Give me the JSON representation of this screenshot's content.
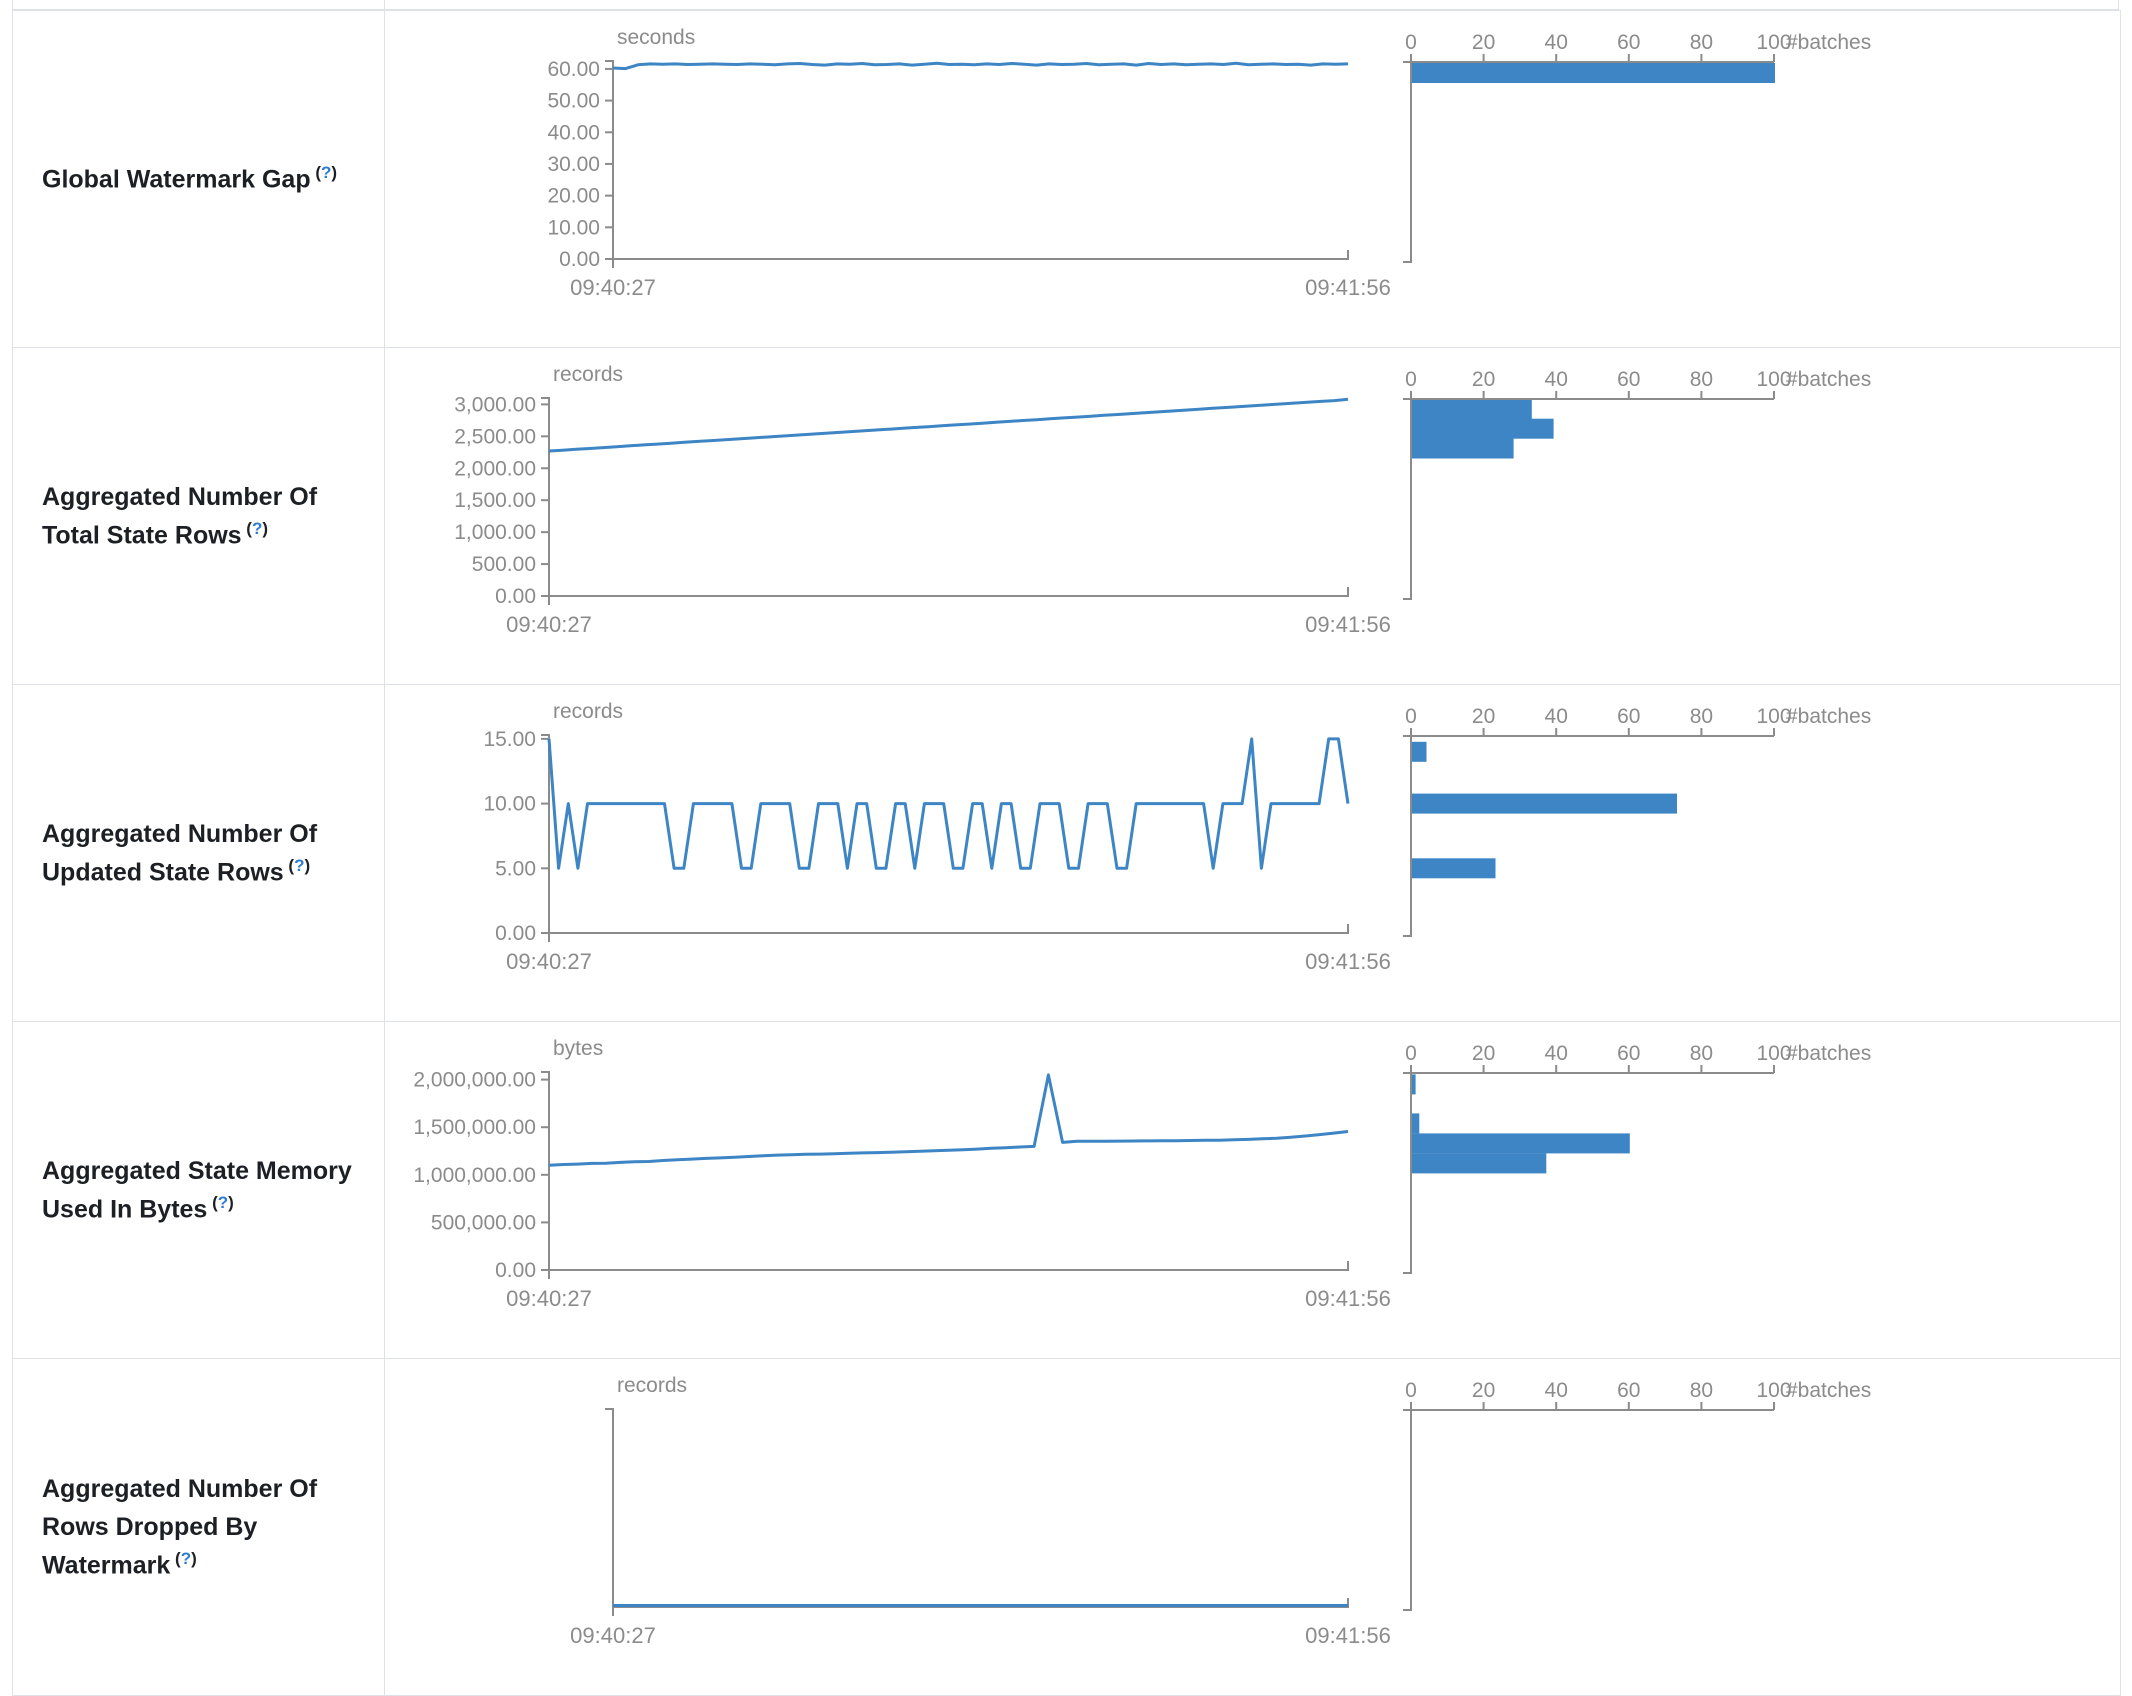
{
  "colors": {
    "accent_blue": "#3d85c4",
    "axis_gray": "#8b8b8b",
    "label_dark": "#1c2025",
    "help_blue": "#2e7cd1",
    "border_gray": "#dee2e6"
  },
  "histogram_axis": {
    "label": "#batches",
    "ticks": [
      0,
      20,
      40,
      60,
      80,
      100
    ],
    "max": 100
  },
  "x_axis": {
    "start_label": "09:40:27",
    "end_label": "09:41:56"
  },
  "rows": [
    {
      "label": "Global Watermark Gap",
      "help": "?"
    },
    {
      "label": "Aggregated Number Of Total State Rows",
      "help": "?"
    },
    {
      "label": "Aggregated Number Of Updated State Rows",
      "help": "?"
    },
    {
      "label": "Aggregated State Memory Used In Bytes",
      "help": "?"
    },
    {
      "label": "Aggregated Number Of Rows Dropped By Watermark",
      "help": "?"
    }
  ],
  "chart_data": [
    {
      "type": "line",
      "title": "Global Watermark Gap",
      "ylabel": "seconds",
      "x_start": "09:40:27",
      "x_end": "09:41:56",
      "ylim": [
        0,
        62.5
      ],
      "yticks": [
        {
          "v": 0,
          "label": "0.00"
        },
        {
          "v": 10,
          "label": "10.00"
        },
        {
          "v": 20,
          "label": "20.00"
        },
        {
          "v": 30,
          "label": "30.00"
        },
        {
          "v": 40,
          "label": "40.00"
        },
        {
          "v": 50,
          "label": "50.00"
        },
        {
          "v": 60,
          "label": "60.00"
        }
      ],
      "values": [
        60.3,
        60.1,
        61.3,
        61.6,
        61.5,
        61.6,
        61.4,
        61.5,
        61.6,
        61.5,
        61.4,
        61.6,
        61.5,
        61.3,
        61.6,
        61.7,
        61.4,
        61.2,
        61.6,
        61.5,
        61.7,
        61.3,
        61.4,
        61.6,
        61.2,
        61.5,
        61.8,
        61.4,
        61.5,
        61.3,
        61.6,
        61.4,
        61.7,
        61.5,
        61.2,
        61.6,
        61.4,
        61.5,
        61.7,
        61.3,
        61.5,
        61.6,
        61.2,
        61.7,
        61.4,
        61.6,
        61.3,
        61.5,
        61.6,
        61.4,
        61.8,
        61.3,
        61.5,
        61.6,
        61.4,
        61.5,
        61.2,
        61.6,
        61.5,
        61.6
      ],
      "histogram": {
        "xlabel": "#batches",
        "total": 100,
        "bins": [
          {
            "center": 60.6,
            "count": 100
          }
        ]
      }
    },
    {
      "type": "line",
      "title": "Aggregated Number Of Total State Rows",
      "ylabel": "records",
      "x_start": "09:40:27",
      "x_end": "09:41:56",
      "ylim": [
        0,
        3100
      ],
      "yticks": [
        {
          "v": 0,
          "label": "0.00"
        },
        {
          "v": 500,
          "label": "500.00"
        },
        {
          "v": 1000,
          "label": "1,000.00"
        },
        {
          "v": 1500,
          "label": "1,500.00"
        },
        {
          "v": 2000,
          "label": "2,000.00"
        },
        {
          "v": 2500,
          "label": "2,500.00"
        },
        {
          "v": 3000,
          "label": "3,000.00"
        }
      ],
      "values": [
        2270,
        2283,
        2297,
        2310,
        2324,
        2338,
        2351,
        2365,
        2379,
        2392,
        2406,
        2420,
        2433,
        2447,
        2460,
        2474,
        2488,
        2501,
        2515,
        2529,
        2542,
        2556,
        2570,
        2583,
        2597,
        2610,
        2624,
        2638,
        2651,
        2665,
        2679,
        2692,
        2706,
        2720,
        2733,
        2747,
        2760,
        2774,
        2788,
        2801,
        2815,
        2829,
        2842,
        2856,
        2870,
        2883,
        2897,
        2910,
        2924,
        2938,
        2951,
        2965,
        2979,
        2992,
        3006,
        3020,
        3033,
        3047,
        3060,
        3080
      ],
      "histogram": {
        "xlabel": "#batches",
        "total": 100,
        "bins": [
          {
            "center": 2930,
            "count": 33
          },
          {
            "center": 2620,
            "count": 39
          },
          {
            "center": 2310,
            "count": 28
          }
        ]
      }
    },
    {
      "type": "line",
      "title": "Aggregated Number Of Updated State Rows",
      "ylabel": "records",
      "x_start": "09:40:27",
      "x_end": "09:41:56",
      "ylim": [
        0,
        15.3
      ],
      "yticks": [
        {
          "v": 0,
          "label": "0.00"
        },
        {
          "v": 5,
          "label": "5.00"
        },
        {
          "v": 10,
          "label": "10.00"
        },
        {
          "v": 15,
          "label": "15.00"
        }
      ],
      "values": [
        15,
        5,
        10,
        5,
        10,
        10,
        10,
        10,
        10,
        10,
        10,
        10,
        10,
        5,
        5,
        10,
        10,
        10,
        10,
        10,
        5,
        5,
        10,
        10,
        10,
        10,
        5,
        5,
        10,
        10,
        10,
        5,
        10,
        10,
        5,
        5,
        10,
        10,
        5,
        10,
        10,
        10,
        5,
        5,
        10,
        10,
        5,
        10,
        10,
        5,
        5,
        10,
        10,
        10,
        5,
        5,
        10,
        10,
        10,
        5,
        5,
        10,
        10,
        10,
        10,
        10,
        10,
        10,
        10,
        5,
        10,
        10,
        10,
        15,
        5,
        10,
        10,
        10,
        10,
        10,
        10,
        15,
        15,
        10
      ],
      "histogram": {
        "xlabel": "#batches",
        "total": 100,
        "bins": [
          {
            "center": 14,
            "count": 4
          },
          {
            "center": 10,
            "count": 73
          },
          {
            "center": 5,
            "count": 23
          }
        ]
      }
    },
    {
      "type": "line",
      "title": "Aggregated State Memory Used In Bytes",
      "ylabel": "bytes",
      "x_start": "09:40:27",
      "x_end": "09:41:56",
      "ylim": [
        0,
        2080000
      ],
      "yticks": [
        {
          "v": 0,
          "label": "0.00"
        },
        {
          "v": 500000,
          "label": "500,000.00"
        },
        {
          "v": 1000000,
          "label": "1,000,000.00"
        },
        {
          "v": 1500000,
          "label": "1,500,000.00"
        },
        {
          "v": 2000000,
          "label": "2,000,000.00"
        }
      ],
      "values": [
        1100000,
        1108000,
        1113000,
        1120000,
        1122000,
        1130000,
        1138000,
        1140000,
        1150000,
        1158000,
        1165000,
        1172000,
        1178000,
        1185000,
        1192000,
        1200000,
        1207000,
        1210000,
        1215000,
        1218000,
        1222000,
        1226000,
        1230000,
        1233000,
        1237000,
        1242000,
        1247000,
        1252000,
        1258000,
        1263000,
        1270000,
        1278000,
        1285000,
        1292000,
        1298000,
        2050000,
        1340000,
        1352000,
        1352000,
        1353000,
        1354000,
        1355000,
        1356000,
        1357000,
        1358000,
        1360000,
        1362000,
        1364000,
        1368000,
        1372000,
        1378000,
        1385000,
        1395000,
        1408000,
        1422000,
        1438000,
        1455000
      ],
      "histogram": {
        "xlabel": "#batches",
        "total": 100,
        "bins": [
          {
            "center": 1950000,
            "count": 1
          },
          {
            "center": 1540000,
            "count": 2
          },
          {
            "center": 1330000,
            "count": 60
          },
          {
            "center": 1120000,
            "count": 37
          }
        ]
      }
    },
    {
      "type": "line",
      "title": "Aggregated Number Of Rows Dropped By Watermark",
      "ylabel": "records",
      "x_start": "09:40:27",
      "x_end": "09:41:56",
      "ylim": [
        0,
        1
      ],
      "yticks": [],
      "values": [
        0,
        0,
        0,
        0,
        0,
        0,
        0,
        0,
        0,
        0,
        0,
        0,
        0,
        0,
        0,
        0,
        0,
        0,
        0,
        0,
        0,
        0,
        0,
        0,
        0,
        0,
        0,
        0,
        0,
        0
      ],
      "histogram": {
        "xlabel": "#batches",
        "total": 0,
        "bins": []
      }
    }
  ]
}
